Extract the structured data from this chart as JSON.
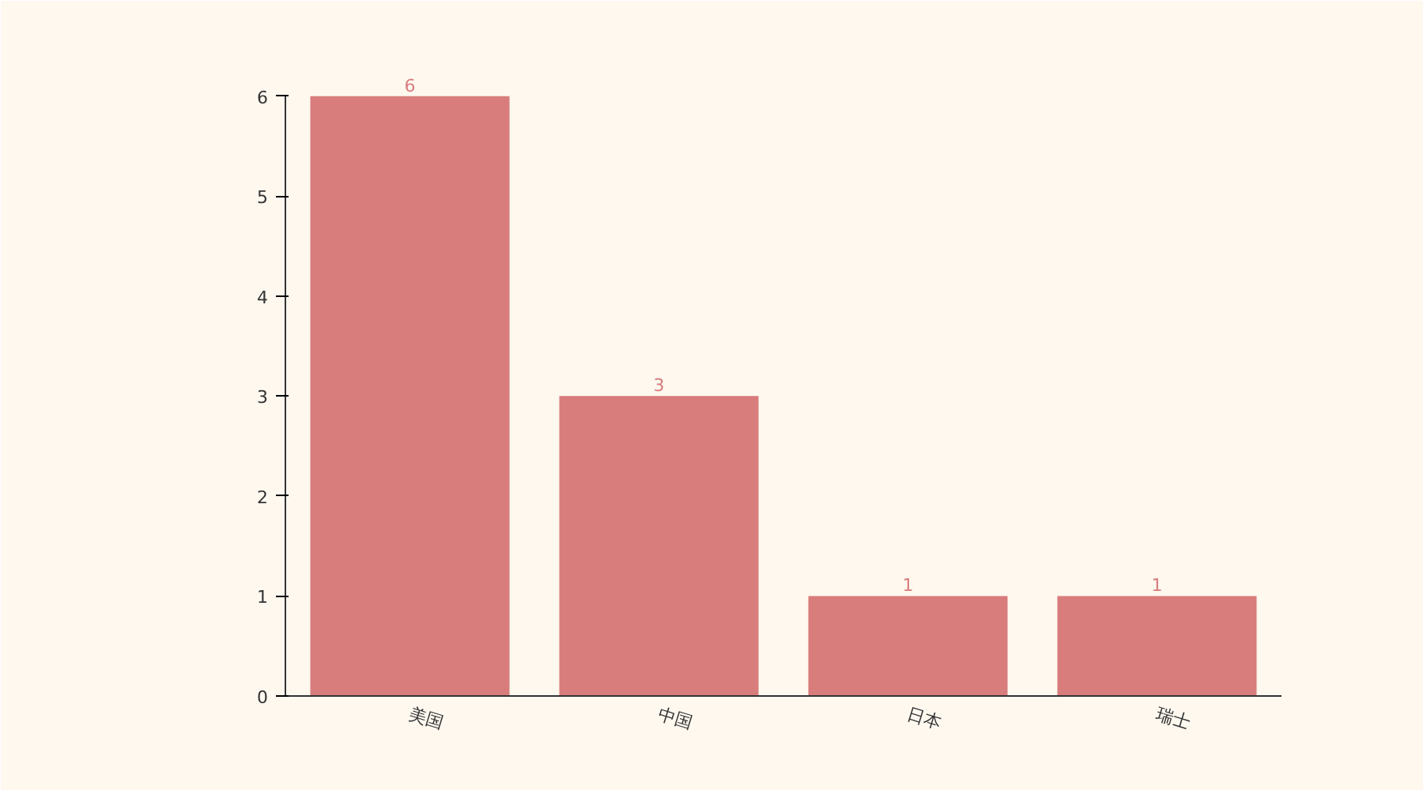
{
  "chart_data": {
    "type": "bar",
    "categories": [
      "美国",
      "中国",
      "日本",
      "瑞士"
    ],
    "values": [
      6,
      3,
      1,
      1
    ],
    "color": "#d87c7c",
    "ylim": [
      0,
      6
    ],
    "yticks": [
      0,
      1,
      2,
      3,
      4,
      5,
      6
    ],
    "grid": false,
    "data_labels": true
  }
}
